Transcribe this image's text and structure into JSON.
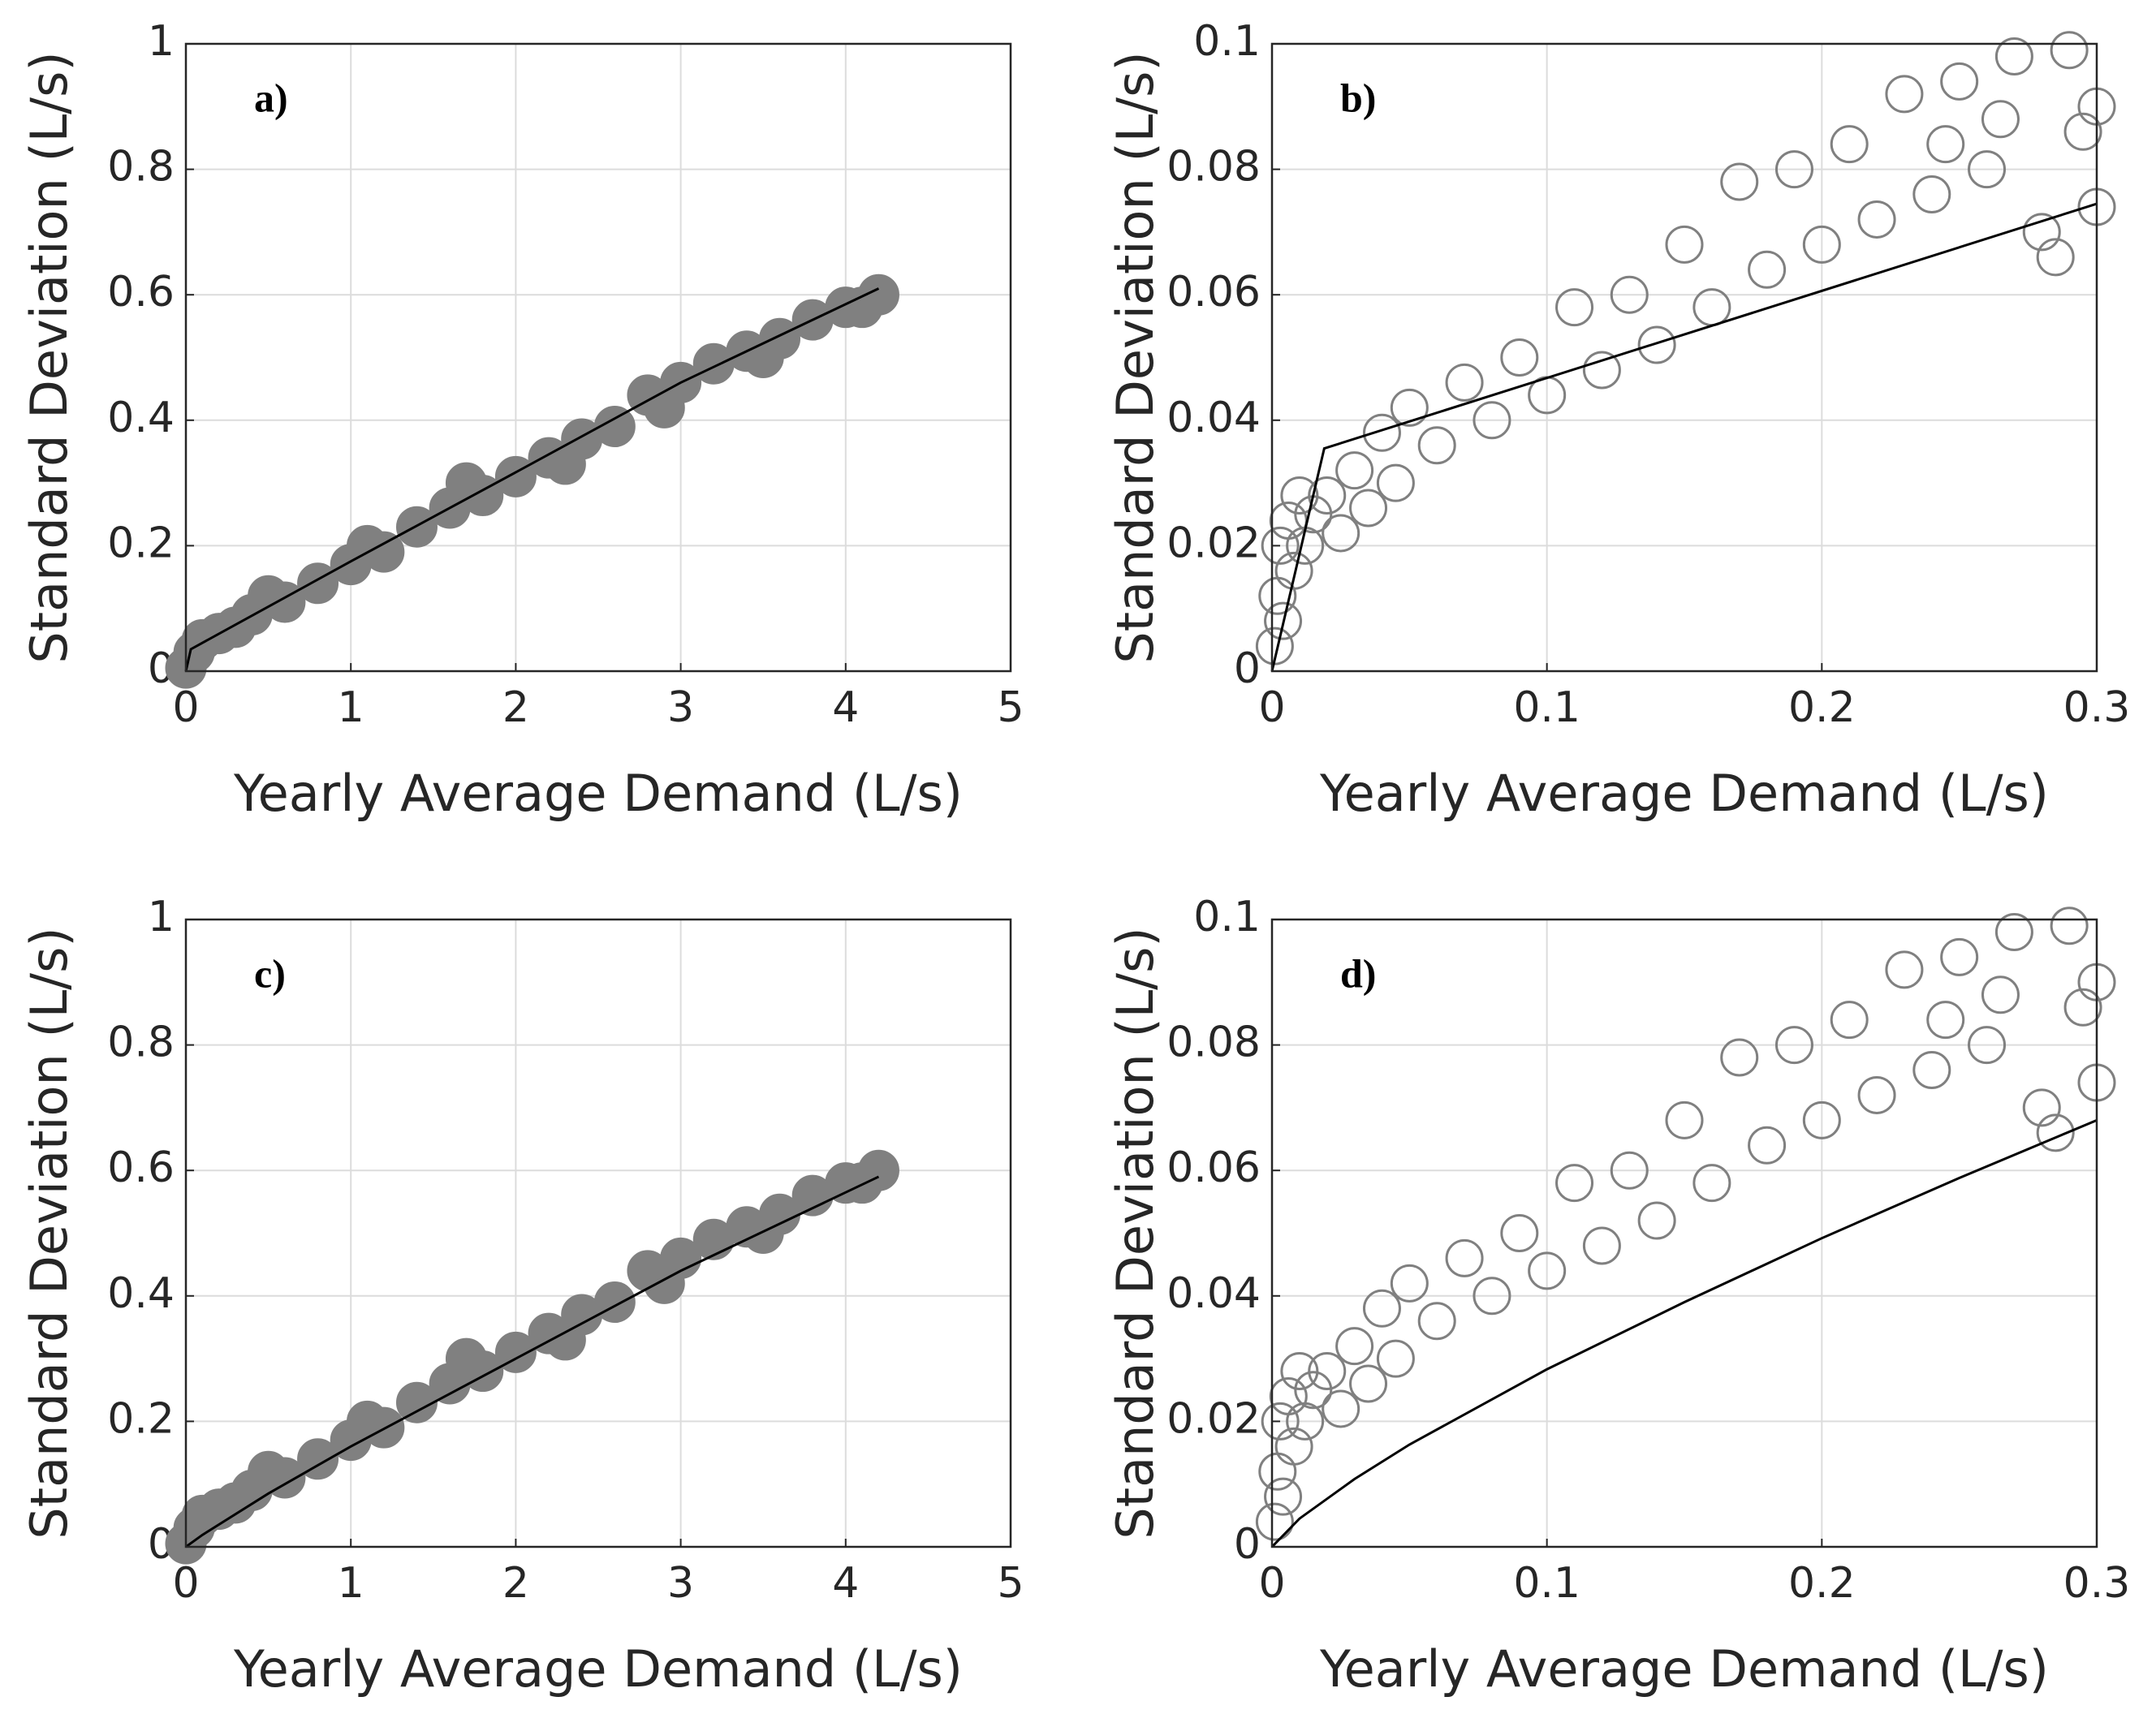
{
  "chart_data": [
    {
      "type": "scatter",
      "panel_label": "a)",
      "xlabel": "Yearly Average Demand (L/s)",
      "ylabel": "Standard Deviation (L/s)",
      "xlim": [
        0,
        5
      ],
      "ylim": [
        0,
        1
      ],
      "xticks": [
        0,
        1,
        2,
        3,
        4,
        5
      ],
      "yticks": [
        0,
        0.2,
        0.4,
        0.6,
        0.8,
        1
      ],
      "grid": true,
      "series": [
        {
          "type": "scatter",
          "color": "#808080",
          "filled": true,
          "x": [
            0,
            0.05,
            0.1,
            0.2,
            0.3,
            0.4,
            0.5,
            0.6,
            0.8,
            1,
            1.1,
            1.2,
            1.4,
            1.6,
            1.7,
            1.8,
            2,
            2.2,
            2.3,
            2.4,
            2.6,
            2.8,
            2.9,
            3,
            3.2,
            3.4,
            3.5,
            3.6,
            3.8,
            4,
            4.1,
            4.2
          ],
          "values": [
            0.005,
            0.03,
            0.05,
            0.06,
            0.07,
            0.09,
            0.12,
            0.11,
            0.14,
            0.17,
            0.2,
            0.19,
            0.23,
            0.26,
            0.3,
            0.28,
            0.31,
            0.34,
            0.33,
            0.37,
            0.39,
            0.44,
            0.42,
            0.46,
            0.49,
            0.51,
            0.5,
            0.53,
            0.56,
            0.58,
            0.58,
            0.6
          ]
        },
        {
          "type": "line",
          "color": "#000000",
          "x": [
            0,
            0.03,
            1,
            2,
            3,
            4.2
          ],
          "values": [
            0,
            0.035,
            0.175,
            0.317,
            0.46,
            0.61
          ]
        }
      ]
    },
    {
      "type": "scatter",
      "panel_label": "b)",
      "xlabel": "Yearly Average Demand (L/s)",
      "ylabel": "Standard Deviation (L/s)",
      "xlim": [
        0,
        0.3
      ],
      "ylim": [
        0,
        0.1
      ],
      "xticks": [
        0,
        0.1,
        0.2,
        0.3
      ],
      "yticks": [
        0,
        0.02,
        0.04,
        0.06,
        0.08,
        0.1
      ],
      "grid": true,
      "series": [
        {
          "type": "scatter",
          "color": "#808080",
          "filled": false,
          "x": [
            0.001,
            0.002,
            0.003,
            0.004,
            0.006,
            0.008,
            0.01,
            0.012,
            0.015,
            0.02,
            0.025,
            0.03,
            0.035,
            0.04,
            0.045,
            0.05,
            0.06,
            0.07,
            0.08,
            0.09,
            0.1,
            0.11,
            0.12,
            0.13,
            0.14,
            0.15,
            0.16,
            0.17,
            0.18,
            0.19,
            0.2,
            0.21,
            0.22,
            0.23,
            0.24,
            0.245,
            0.25,
            0.26,
            0.265,
            0.27,
            0.28,
            0.285,
            0.29,
            0.295,
            0.3,
            0.3
          ],
          "values": [
            0.004,
            0.012,
            0.02,
            0.008,
            0.024,
            0.016,
            0.028,
            0.02,
            0.025,
            0.028,
            0.022,
            0.032,
            0.026,
            0.038,
            0.03,
            0.042,
            0.036,
            0.046,
            0.04,
            0.05,
            0.044,
            0.058,
            0.048,
            0.06,
            0.052,
            0.068,
            0.058,
            0.078,
            0.064,
            0.08,
            0.068,
            0.084,
            0.072,
            0.092,
            0.076,
            0.084,
            0.094,
            0.08,
            0.088,
            0.098,
            0.07,
            0.066,
            0.099,
            0.086,
            0.074,
            0.09
          ]
        },
        {
          "type": "line",
          "color": "#000000",
          "x": [
            0,
            0.019,
            0.3
          ],
          "values": [
            0,
            0.0355,
            0.0745
          ]
        }
      ]
    },
    {
      "type": "scatter",
      "panel_label": "c)",
      "xlabel": "Yearly Average Demand (L/s)",
      "ylabel": "Standard Deviation (L/s)",
      "xlim": [
        0,
        5
      ],
      "ylim": [
        0,
        1
      ],
      "xticks": [
        0,
        1,
        2,
        3,
        4,
        5
      ],
      "yticks": [
        0,
        0.2,
        0.4,
        0.6,
        0.8,
        1
      ],
      "grid": true,
      "series": [
        {
          "type": "scatter",
          "color": "#808080",
          "filled": true,
          "x": [
            0,
            0.05,
            0.1,
            0.2,
            0.3,
            0.4,
            0.5,
            0.6,
            0.8,
            1,
            1.1,
            1.2,
            1.4,
            1.6,
            1.7,
            1.8,
            2,
            2.2,
            2.3,
            2.4,
            2.6,
            2.8,
            2.9,
            3,
            3.2,
            3.4,
            3.5,
            3.6,
            3.8,
            4,
            4.1,
            4.2
          ],
          "values": [
            0.005,
            0.03,
            0.05,
            0.06,
            0.07,
            0.09,
            0.12,
            0.11,
            0.14,
            0.17,
            0.2,
            0.19,
            0.23,
            0.26,
            0.3,
            0.28,
            0.31,
            0.34,
            0.33,
            0.37,
            0.39,
            0.44,
            0.42,
            0.46,
            0.49,
            0.51,
            0.5,
            0.53,
            0.56,
            0.58,
            0.58,
            0.6
          ]
        },
        {
          "type": "line",
          "color": "#000000",
          "x": [
            0,
            0.1,
            0.5,
            1,
            2,
            3,
            4.2
          ],
          "values": [
            0,
            0.019,
            0.085,
            0.16,
            0.3,
            0.44,
            0.59
          ]
        }
      ]
    },
    {
      "type": "scatter",
      "panel_label": "d)",
      "xlabel": "Yearly Average Demand (L/s)",
      "ylabel": "Standard Deviation (L/s)",
      "xlim": [
        0,
        0.3
      ],
      "ylim": [
        0,
        0.1
      ],
      "xticks": [
        0,
        0.1,
        0.2,
        0.3
      ],
      "yticks": [
        0,
        0.02,
        0.04,
        0.06,
        0.08,
        0.1
      ],
      "grid": true,
      "series": [
        {
          "type": "scatter",
          "color": "#808080",
          "filled": false,
          "x": [
            0.001,
            0.002,
            0.003,
            0.004,
            0.006,
            0.008,
            0.01,
            0.012,
            0.015,
            0.02,
            0.025,
            0.03,
            0.035,
            0.04,
            0.045,
            0.05,
            0.06,
            0.07,
            0.08,
            0.09,
            0.1,
            0.11,
            0.12,
            0.13,
            0.14,
            0.15,
            0.16,
            0.17,
            0.18,
            0.19,
            0.2,
            0.21,
            0.22,
            0.23,
            0.24,
            0.245,
            0.25,
            0.26,
            0.265,
            0.27,
            0.28,
            0.285,
            0.29,
            0.295,
            0.3,
            0.3
          ],
          "values": [
            0.004,
            0.012,
            0.02,
            0.008,
            0.024,
            0.016,
            0.028,
            0.02,
            0.025,
            0.028,
            0.022,
            0.032,
            0.026,
            0.038,
            0.03,
            0.042,
            0.036,
            0.046,
            0.04,
            0.05,
            0.044,
            0.058,
            0.048,
            0.06,
            0.052,
            0.068,
            0.058,
            0.078,
            0.064,
            0.08,
            0.068,
            0.084,
            0.072,
            0.092,
            0.076,
            0.084,
            0.094,
            0.08,
            0.088,
            0.098,
            0.07,
            0.066,
            0.099,
            0.086,
            0.074,
            0.09
          ]
        },
        {
          "type": "line",
          "color": "#000000",
          "x": [
            0,
            0.01,
            0.03,
            0.05,
            0.1,
            0.15,
            0.2,
            0.25,
            0.3
          ],
          "values": [
            0,
            0.0045,
            0.0108,
            0.0163,
            0.0283,
            0.039,
            0.0492,
            0.0588,
            0.068
          ]
        }
      ]
    }
  ]
}
